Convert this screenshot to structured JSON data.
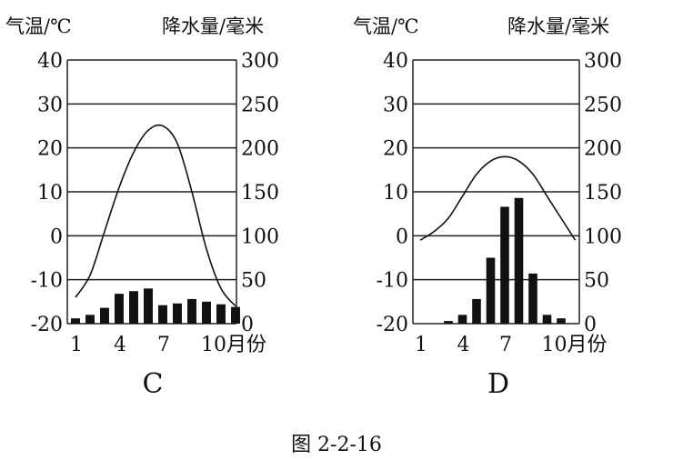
{
  "caption": "图 2-2-16",
  "chart_data": [
    {
      "type": "bar",
      "title": "C",
      "left_axis_label": "气温/℃",
      "right_axis_label": "降水量/毫米",
      "x_tick_labels": [
        "1",
        "4",
        "7",
        "10月份"
      ],
      "x_tick_months": [
        1,
        4,
        7,
        10
      ],
      "temp_ticks": [
        "40",
        "30",
        "20",
        "10",
        "0",
        "-10",
        "-20"
      ],
      "precip_ticks": [
        "300",
        "250",
        "200",
        "150",
        "100",
        "50",
        "0"
      ],
      "temp_range": [
        -20,
        40
      ],
      "precip_range": [
        0,
        300
      ],
      "months": [
        1,
        2,
        3,
        4,
        5,
        6,
        7,
        8,
        9,
        10,
        11,
        12
      ],
      "series": [
        {
          "name": "降水量",
          "axis": "right",
          "kind": "bar",
          "values": [
            6,
            10,
            18,
            34,
            37,
            40,
            21,
            23,
            28,
            25,
            22,
            19
          ]
        },
        {
          "name": "气温",
          "axis": "left",
          "kind": "line",
          "values": [
            -14,
            -9,
            1,
            11,
            19,
            24,
            25,
            21,
            10,
            -3,
            -12,
            -16
          ]
        }
      ],
      "grid": true
    },
    {
      "type": "bar",
      "title": "D",
      "left_axis_label": "气温/℃",
      "right_axis_label": "降水量/毫米",
      "x_tick_labels": [
        "1",
        "4",
        "7",
        "10月份"
      ],
      "x_tick_months": [
        1,
        4,
        7,
        10
      ],
      "temp_ticks": [
        "40",
        "30",
        "20",
        "10",
        "0",
        "-10",
        "-20"
      ],
      "precip_ticks": [
        "300",
        "250",
        "200",
        "150",
        "100",
        "50",
        "0"
      ],
      "temp_range": [
        -20,
        40
      ],
      "precip_range": [
        0,
        300
      ],
      "months": [
        1,
        2,
        3,
        4,
        5,
        6,
        7,
        8,
        9,
        10,
        11,
        12
      ],
      "series": [
        {
          "name": "降水量",
          "axis": "right",
          "kind": "bar",
          "values": [
            0,
            0,
            3,
            10,
            28,
            75,
            133,
            143,
            57,
            10,
            6,
            0
          ]
        },
        {
          "name": "气温",
          "axis": "left",
          "kind": "line",
          "values": [
            -1,
            1,
            4,
            9,
            14,
            17,
            18,
            17,
            14,
            9,
            4,
            -1
          ]
        }
      ],
      "grid": true
    }
  ]
}
